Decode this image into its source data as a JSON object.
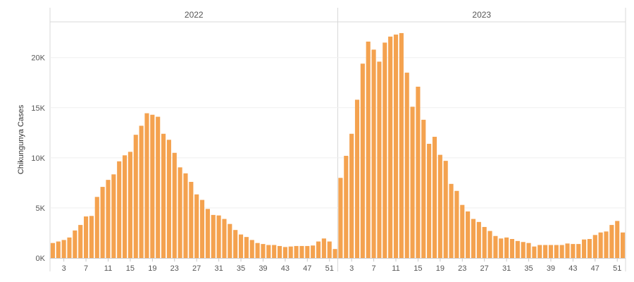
{
  "chart_data": {
    "type": "bar",
    "ylabel": "Chikungunya Cases",
    "ylim": [
      0,
      23500
    ],
    "yticks": [
      0,
      5000,
      10000,
      15000,
      20000
    ],
    "ytick_labels": [
      "0K",
      "5K",
      "10K",
      "15K",
      "20K"
    ],
    "grid": "horizontal",
    "bar_color": "#F4A24F",
    "xtick_labels": [
      "3",
      "7",
      "11",
      "15",
      "19",
      "23",
      "27",
      "31",
      "35",
      "39",
      "43",
      "47",
      "51"
    ],
    "panels": [
      {
        "name": "2022",
        "x": [
          1,
          2,
          3,
          4,
          5,
          6,
          7,
          8,
          9,
          10,
          11,
          12,
          13,
          14,
          15,
          16,
          17,
          18,
          19,
          20,
          21,
          22,
          23,
          24,
          25,
          26,
          27,
          28,
          29,
          30,
          31,
          32,
          33,
          34,
          35,
          36,
          37,
          38,
          39,
          40,
          41,
          42,
          43,
          44,
          45,
          46,
          47,
          48,
          49,
          50,
          51,
          52
        ],
        "values": [
          1500,
          1650,
          1800,
          2050,
          2750,
          3300,
          4150,
          4200,
          6100,
          7100,
          7800,
          8350,
          9650,
          10250,
          10600,
          12300,
          13200,
          14450,
          14300,
          14100,
          12400,
          11800,
          10500,
          9050,
          8450,
          7600,
          6350,
          5800,
          4900,
          4300,
          4250,
          3900,
          3400,
          2800,
          2350,
          2100,
          1800,
          1500,
          1400,
          1300,
          1300,
          1200,
          1100,
          1150,
          1200,
          1200,
          1200,
          1250,
          1650,
          1950,
          1650,
          900
        ]
      },
      {
        "name": "2023",
        "x": [
          1,
          2,
          3,
          4,
          5,
          6,
          7,
          8,
          9,
          10,
          11,
          12,
          13,
          14,
          15,
          16,
          17,
          18,
          19,
          20,
          21,
          22,
          23,
          24,
          25,
          26,
          27,
          28,
          29,
          30,
          31,
          32,
          33,
          34,
          35,
          36,
          37,
          38,
          39,
          40,
          41,
          42,
          43,
          44,
          45,
          46,
          47,
          48,
          49,
          50,
          51,
          52
        ],
        "values": [
          8000,
          10200,
          12400,
          15800,
          19400,
          21600,
          20800,
          19600,
          21500,
          22100,
          22300,
          22450,
          18500,
          15100,
          17100,
          13800,
          11400,
          12100,
          10300,
          9700,
          7400,
          6700,
          5300,
          4650,
          3900,
          3600,
          3100,
          2700,
          2200,
          1950,
          2050,
          1900,
          1700,
          1600,
          1500,
          1150,
          1300,
          1300,
          1300,
          1300,
          1300,
          1450,
          1400,
          1400,
          1850,
          1900,
          2300,
          2550,
          2650,
          3300,
          3700,
          2550
        ]
      }
    ]
  }
}
